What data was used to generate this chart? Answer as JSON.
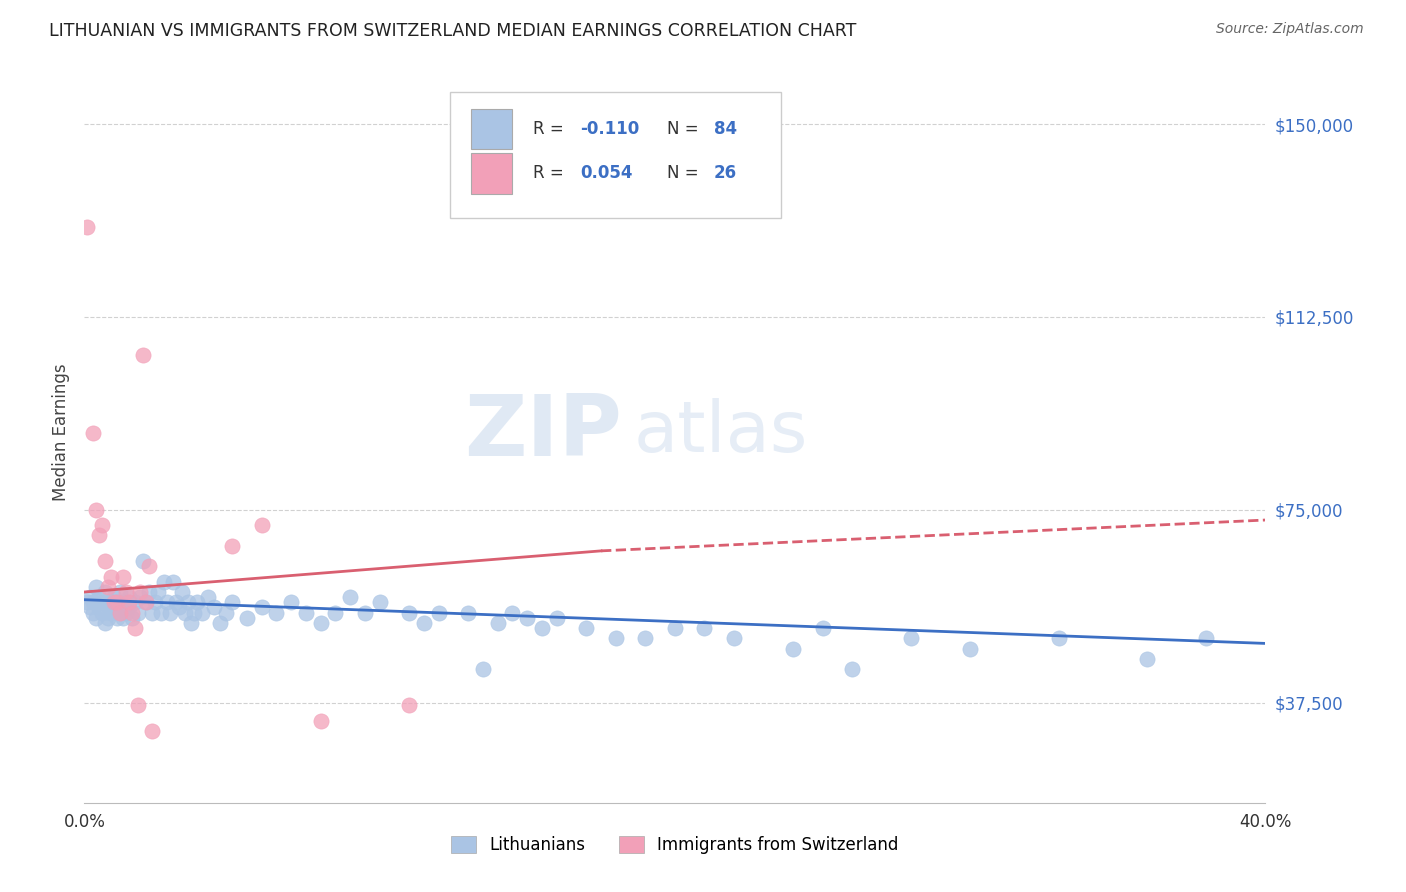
{
  "title": "LITHUANIAN VS IMMIGRANTS FROM SWITZERLAND MEDIAN EARNINGS CORRELATION CHART",
  "source": "Source: ZipAtlas.com",
  "ylabel": "Median Earnings",
  "watermark_zip": "ZIP",
  "watermark_atlas": "atlas",
  "yticks": [
    37500,
    75000,
    112500,
    150000
  ],
  "ytick_labels": [
    "$37,500",
    "$75,000",
    "$112,500",
    "$150,000"
  ],
  "xmin": 0.0,
  "xmax": 0.4,
  "ymin": 18000,
  "ymax": 162000,
  "blue_color": "#aac4e4",
  "pink_color": "#f2a0b8",
  "blue_line_color": "#3c6fc4",
  "pink_line_color": "#d95f70",
  "legend_bottom": [
    "Lithuanians",
    "Immigrants from Switzerland"
  ],
  "blue_scatter": [
    [
      0.001,
      57000
    ],
    [
      0.002,
      58000
    ],
    [
      0.002,
      56000
    ],
    [
      0.003,
      55000
    ],
    [
      0.003,
      57000
    ],
    [
      0.004,
      60000
    ],
    [
      0.004,
      54000
    ],
    [
      0.005,
      58000
    ],
    [
      0.005,
      56000
    ],
    [
      0.006,
      55000
    ],
    [
      0.006,
      57000
    ],
    [
      0.007,
      53000
    ],
    [
      0.007,
      59000
    ],
    [
      0.008,
      56000
    ],
    [
      0.008,
      54000
    ],
    [
      0.009,
      57000
    ],
    [
      0.009,
      55000
    ],
    [
      0.01,
      58000
    ],
    [
      0.01,
      56000
    ],
    [
      0.011,
      54000
    ],
    [
      0.011,
      57000
    ],
    [
      0.012,
      55000
    ],
    [
      0.012,
      59000
    ],
    [
      0.013,
      56000
    ],
    [
      0.013,
      54000
    ],
    [
      0.014,
      57000
    ],
    [
      0.014,
      55000
    ],
    [
      0.015,
      58000
    ],
    [
      0.015,
      56000
    ],
    [
      0.016,
      54000
    ],
    [
      0.017,
      57000
    ],
    [
      0.018,
      55000
    ],
    [
      0.019,
      58000
    ],
    [
      0.02,
      65000
    ],
    [
      0.021,
      57000
    ],
    [
      0.022,
      59000
    ],
    [
      0.023,
      55000
    ],
    [
      0.024,
      57000
    ],
    [
      0.025,
      59000
    ],
    [
      0.026,
      55000
    ],
    [
      0.027,
      61000
    ],
    [
      0.028,
      57000
    ],
    [
      0.029,
      55000
    ],
    [
      0.03,
      61000
    ],
    [
      0.031,
      57000
    ],
    [
      0.032,
      56000
    ],
    [
      0.033,
      59000
    ],
    [
      0.034,
      55000
    ],
    [
      0.035,
      57000
    ],
    [
      0.036,
      53000
    ],
    [
      0.037,
      55000
    ],
    [
      0.038,
      57000
    ],
    [
      0.04,
      55000
    ],
    [
      0.042,
      58000
    ],
    [
      0.044,
      56000
    ],
    [
      0.046,
      53000
    ],
    [
      0.048,
      55000
    ],
    [
      0.05,
      57000
    ],
    [
      0.055,
      54000
    ],
    [
      0.06,
      56000
    ],
    [
      0.065,
      55000
    ],
    [
      0.07,
      57000
    ],
    [
      0.075,
      55000
    ],
    [
      0.08,
      53000
    ],
    [
      0.085,
      55000
    ],
    [
      0.09,
      58000
    ],
    [
      0.095,
      55000
    ],
    [
      0.1,
      57000
    ],
    [
      0.11,
      55000
    ],
    [
      0.115,
      53000
    ],
    [
      0.12,
      55000
    ],
    [
      0.13,
      55000
    ],
    [
      0.135,
      44000
    ],
    [
      0.14,
      53000
    ],
    [
      0.145,
      55000
    ],
    [
      0.15,
      54000
    ],
    [
      0.155,
      52000
    ],
    [
      0.16,
      54000
    ],
    [
      0.17,
      52000
    ],
    [
      0.18,
      50000
    ],
    [
      0.19,
      50000
    ],
    [
      0.2,
      52000
    ],
    [
      0.21,
      52000
    ],
    [
      0.22,
      50000
    ],
    [
      0.24,
      48000
    ],
    [
      0.25,
      52000
    ],
    [
      0.26,
      44000
    ],
    [
      0.28,
      50000
    ],
    [
      0.3,
      48000
    ],
    [
      0.33,
      50000
    ],
    [
      0.36,
      46000
    ],
    [
      0.38,
      50000
    ]
  ],
  "pink_scatter": [
    [
      0.001,
      130000
    ],
    [
      0.003,
      90000
    ],
    [
      0.004,
      75000
    ],
    [
      0.005,
      70000
    ],
    [
      0.006,
      72000
    ],
    [
      0.007,
      65000
    ],
    [
      0.008,
      60000
    ],
    [
      0.009,
      62000
    ],
    [
      0.01,
      57000
    ],
    [
      0.011,
      57000
    ],
    [
      0.012,
      55000
    ],
    [
      0.013,
      62000
    ],
    [
      0.014,
      59000
    ],
    [
      0.015,
      57000
    ],
    [
      0.016,
      55000
    ],
    [
      0.017,
      52000
    ],
    [
      0.018,
      37000
    ],
    [
      0.019,
      59000
    ],
    [
      0.02,
      105000
    ],
    [
      0.021,
      57000
    ],
    [
      0.022,
      64000
    ],
    [
      0.023,
      32000
    ],
    [
      0.05,
      68000
    ],
    [
      0.06,
      72000
    ],
    [
      0.08,
      34000
    ],
    [
      0.11,
      37000
    ]
  ],
  "blue_trend": [
    0.0,
    57500,
    0.4,
    49000
  ],
  "pink_trend_solid": [
    0.0,
    59000,
    0.175,
    67000
  ],
  "pink_trend_dashed": [
    0.175,
    67000,
    0.4,
    73000
  ]
}
